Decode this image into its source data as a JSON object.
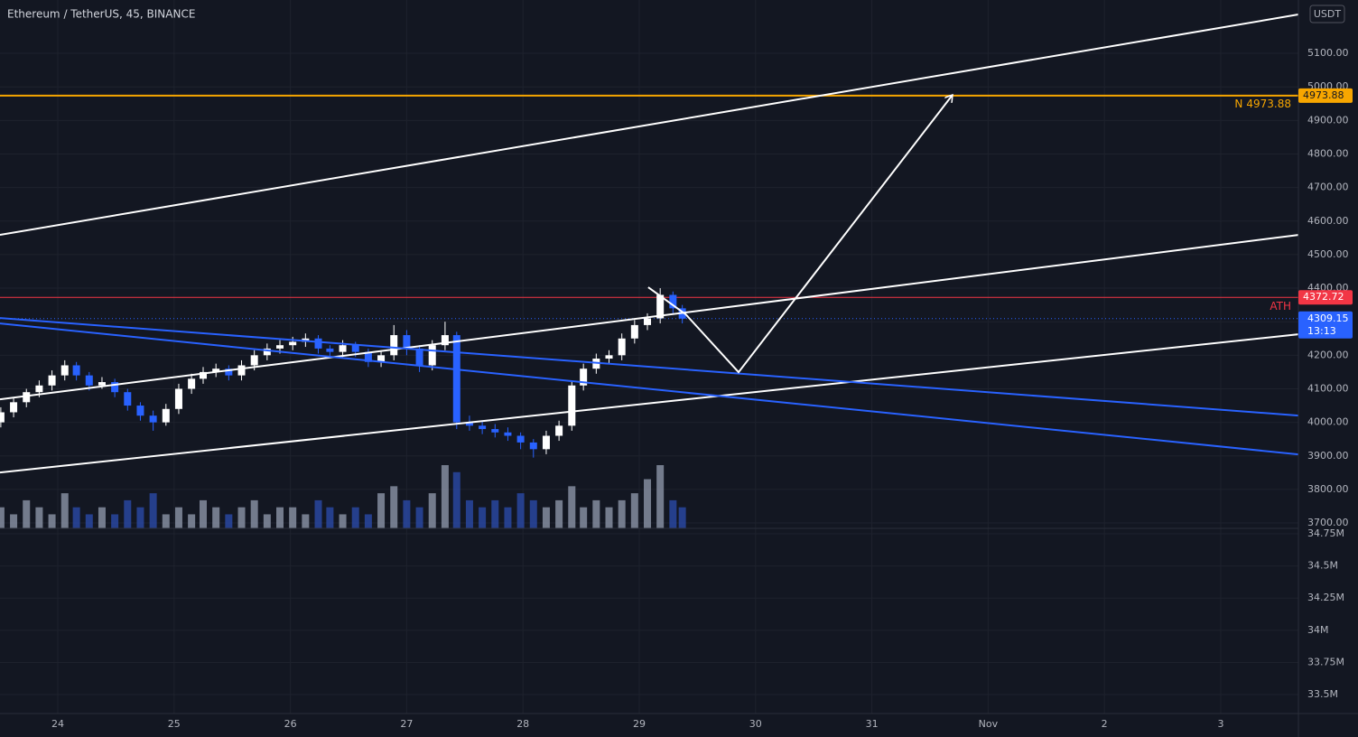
{
  "chart_data": {
    "type": "candlestick",
    "title": "Ethereum / TetherUS, 45, BINANCE",
    "currency": "USDT",
    "x": [
      23.51,
      23.62,
      23.73,
      23.84,
      23.95,
      24.06,
      24.16,
      24.27,
      24.38,
      24.49,
      24.6,
      24.71,
      24.82,
      24.93,
      25.04,
      25.15,
      25.25,
      25.36,
      25.47,
      25.58,
      25.69,
      25.8,
      25.91,
      26.02,
      26.13,
      26.24,
      26.34,
      26.45,
      26.56,
      26.67,
      26.78,
      26.89,
      27.0,
      27.11,
      27.22,
      27.33,
      27.43,
      27.54,
      27.65,
      27.76,
      27.87,
      27.98,
      28.09,
      28.2,
      28.31,
      28.42,
      28.52,
      28.63,
      28.74,
      28.85,
      28.96,
      29.07,
      29.18,
      29.29,
      29.37
    ],
    "open": [
      4000,
      4030,
      4060,
      4090,
      4110,
      4140,
      4170,
      4140,
      4110,
      4120,
      4090,
      4050,
      4020,
      4000,
      4040,
      4100,
      4130,
      4150,
      4160,
      4140,
      4170,
      4200,
      4220,
      4230,
      4240,
      4250,
      4220,
      4210,
      4230,
      4210,
      4180,
      4200,
      4260,
      4220,
      4170,
      4230,
      4260,
      4000,
      3990,
      3980,
      3970,
      3960,
      3940,
      3920,
      3960,
      3990,
      4110,
      4160,
      4190,
      4200,
      4250,
      4290,
      4310,
      4380,
      4340
    ],
    "high": [
      4045,
      4075,
      4100,
      4125,
      4155,
      4185,
      4180,
      4150,
      4135,
      4130,
      4100,
      4060,
      4035,
      4055,
      4115,
      4145,
      4165,
      4175,
      4170,
      4185,
      4215,
      4235,
      4245,
      4255,
      4265,
      4260,
      4230,
      4245,
      4240,
      4220,
      4215,
      4290,
      4275,
      4230,
      4245,
      4300,
      4270,
      4020,
      4005,
      3995,
      3985,
      3970,
      3950,
      3975,
      4005,
      4125,
      4175,
      4205,
      4215,
      4265,
      4305,
      4325,
      4400,
      4390,
      4350
    ],
    "low": [
      3985,
      4015,
      4045,
      4075,
      4095,
      4125,
      4125,
      4095,
      4100,
      4075,
      4035,
      4005,
      3975,
      3990,
      4025,
      4085,
      4115,
      4135,
      4125,
      4125,
      4155,
      4185,
      4205,
      4215,
      4225,
      4205,
      4195,
      4195,
      4195,
      4165,
      4165,
      4185,
      4200,
      4150,
      4155,
      4215,
      3980,
      3975,
      3965,
      3955,
      3945,
      3920,
      3895,
      3905,
      3945,
      3975,
      4095,
      4145,
      4175,
      4185,
      4235,
      4275,
      4295,
      4325,
      4295
    ],
    "close": [
      4030,
      4060,
      4090,
      4110,
      4140,
      4170,
      4140,
      4110,
      4120,
      4090,
      4050,
      4020,
      4000,
      4040,
      4100,
      4130,
      4150,
      4160,
      4140,
      4170,
      4200,
      4220,
      4230,
      4240,
      4250,
      4220,
      4210,
      4230,
      4210,
      4180,
      4200,
      4260,
      4220,
      4170,
      4230,
      4260,
      4000,
      3990,
      3980,
      3970,
      3960,
      3940,
      3920,
      3960,
      3990,
      4110,
      4160,
      4190,
      4200,
      4250,
      4290,
      4310,
      4380,
      4340,
      4309.15
    ],
    "volume": [
      3,
      2,
      4,
      3,
      2,
      5,
      3,
      2,
      3,
      2,
      4,
      3,
      5,
      2,
      3,
      2,
      4,
      3,
      2,
      3,
      4,
      2,
      3,
      3,
      2,
      4,
      3,
      2,
      3,
      2,
      5,
      6,
      4,
      3,
      5,
      9,
      8,
      4,
      3,
      4,
      3,
      5,
      4,
      3,
      4,
      6,
      3,
      4,
      3,
      4,
      5,
      7,
      9,
      4,
      3
    ],
    "up_color": "#ffffff",
    "down_color": "#2962ff",
    "xlim": [
      23.503,
      34.668
    ],
    "xticks": [
      24,
      25,
      26,
      27,
      28,
      29,
      30,
      31,
      {
        "value": 32,
        "label": "Nov"
      },
      {
        "value": 33,
        "label": "2"
      },
      {
        "value": 34,
        "label": "3"
      }
    ],
    "ylim": [
      3684,
      5259
    ],
    "yticks": [
      {
        "value": 3700,
        "label": "3700.00"
      },
      {
        "value": 3800,
        "label": "3800.00"
      },
      {
        "value": 3900,
        "label": "3900.00"
      },
      {
        "value": 4000,
        "label": "4000.00"
      },
      {
        "value": 4100,
        "label": "4100.00"
      },
      {
        "value": 4200,
        "label": "4200.00"
      },
      {
        "value": 4300,
        "label": "4300.00"
      },
      {
        "value": 4400,
        "label": "4400.00"
      },
      {
        "value": 4500,
        "label": "4500.00"
      },
      {
        "value": 4600,
        "label": "4600.00"
      },
      {
        "value": 4700,
        "label": "4700.00"
      },
      {
        "value": 4800,
        "label": "4800.00"
      },
      {
        "value": 4900,
        "label": "4900.00"
      },
      {
        "value": 5000,
        "label": "5000.00"
      },
      {
        "value": 5100,
        "label": "5100.00"
      }
    ],
    "lower_pane": {
      "ylim": [
        33353000,
        34792000
      ],
      "yticks": [
        {
          "value": 34750000,
          "label": "34.75M"
        },
        {
          "value": 34500000,
          "label": "34.5M"
        },
        {
          "value": 34250000,
          "label": "34.25M"
        },
        {
          "value": 34000000,
          "label": "34M"
        },
        {
          "value": 33750000,
          "label": "33.75M"
        },
        {
          "value": 33500000,
          "label": "33.5M"
        }
      ]
    },
    "levels": [
      {
        "name": "N",
        "value": 4973.88,
        "color": "#f7a600"
      },
      {
        "name": "ATH",
        "value": 4372.72,
        "color": "#f23645"
      }
    ],
    "last": {
      "value": 4309.15,
      "countdown": "13:13",
      "color": "#2962ff"
    },
    "drawings": [
      {
        "color": "#ffffff",
        "x": [
          23.503,
          34.668
        ],
        "y": [
          4558.8,
          5215.8
        ]
      },
      {
        "color": "#ffffff",
        "x": [
          23.503,
          34.668
        ],
        "y": [
          4068.8,
          4558.8
        ]
      },
      {
        "color": "#ffffff",
        "x": [
          23.503,
          34.668
        ],
        "y": [
          3850.7,
          4262.6
        ]
      },
      {
        "color": "#2962ff",
        "x": [
          23.503,
          34.668
        ],
        "y": [
          4311.0,
          4020.3
        ]
      },
      {
        "color": "#2962ff",
        "x": [
          23.503,
          34.668
        ],
        "y": [
          4294.9,
          3904.5
        ]
      },
      {
        "color": "#ffffff",
        "x": [
          29.077,
          29.4,
          29.854,
          31.694
        ],
        "y": [
          4402.6,
          4321.9,
          4149.6,
          4976.2
        ]
      }
    ],
    "grid": true
  }
}
